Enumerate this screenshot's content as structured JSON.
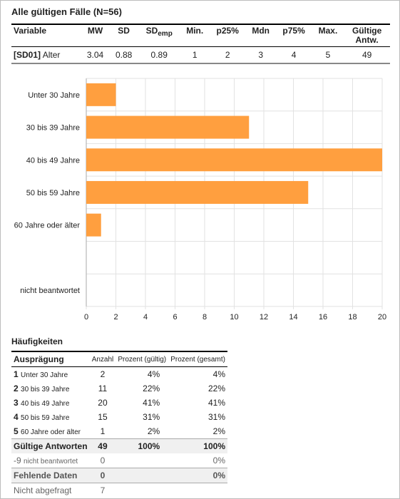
{
  "header": {
    "title": "Alle gültigen Fälle (N=56)"
  },
  "stats_table": {
    "columns": [
      "Variable",
      "MW",
      "SD",
      "SD",
      "Min.",
      "p25%",
      "Mdn",
      "p75%",
      "Max.",
      "Gültige",
      "Antw."
    ],
    "sd_emp_sub": "emp",
    "row": {
      "code": "[SD01]",
      "name": "Alter",
      "mw": "3.04",
      "sd": "0.88",
      "sdemp": "0.89",
      "min": "1",
      "p25": "2",
      "mdn": "3",
      "p75": "4",
      "max": "5",
      "valid": "49"
    }
  },
  "chart_data": {
    "type": "bar",
    "orientation": "horizontal",
    "categories": [
      "Unter 30 Jahre",
      "30 bis 39 Jahre",
      "40 bis 49 Jahre",
      "50 bis 59 Jahre",
      "60 Jahre oder älter",
      "",
      "nicht beantwortet"
    ],
    "values": [
      2,
      11,
      20,
      15,
      1,
      0,
      0
    ],
    "xlim": [
      0,
      20
    ],
    "xticks": [
      0,
      2,
      4,
      6,
      8,
      10,
      12,
      14,
      16,
      18,
      20
    ],
    "bar_color": "#ff9f3f",
    "grid": true
  },
  "frequencies": {
    "title": "Häufigkeiten",
    "headers": {
      "value": "Ausprägung",
      "count": "Anzahl",
      "pct_valid": "Prozent (gültig)",
      "pct_total": "Prozent (gesamt)"
    },
    "rows": [
      {
        "code": "1",
        "label": "Unter 30 Jahre",
        "count": "2",
        "pct_valid": "4%",
        "pct_total": "4%"
      },
      {
        "code": "2",
        "label": "30 bis 39 Jahre",
        "count": "11",
        "pct_valid": "22%",
        "pct_total": "22%"
      },
      {
        "code": "3",
        "label": "40 bis 49 Jahre",
        "count": "20",
        "pct_valid": "41%",
        "pct_total": "41%"
      },
      {
        "code": "4",
        "label": "50 bis 59 Jahre",
        "count": "15",
        "pct_valid": "31%",
        "pct_total": "31%"
      },
      {
        "code": "5",
        "label": "60 Jahre oder älter",
        "count": "1",
        "pct_valid": "2%",
        "pct_total": "2%"
      }
    ],
    "valid_total": {
      "label": "Gültige Antworten",
      "count": "49",
      "pct_valid": "100%",
      "pct_total": "100%"
    },
    "missing": {
      "code": "-9",
      "label": "nicht beantwortet",
      "count": "0",
      "pct_total": "0%"
    },
    "missing_total": {
      "label": "Fehlende Daten",
      "count": "0",
      "pct_total": "0%"
    },
    "not_asked": {
      "label": "Nicht abgefragt",
      "count": "7"
    }
  }
}
